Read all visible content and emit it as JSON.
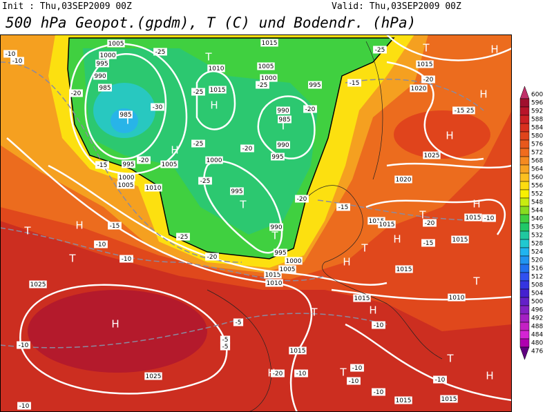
{
  "header": {
    "init": "Init : Thu,03SEP2009 00Z",
    "valid": "Valid: Thu,03SEP2009 00Z",
    "title": "500 hPa Geopot.(gpdm), T (C) und Bodendr. (hPa)"
  },
  "colorbar": {
    "values": [
      600,
      596,
      592,
      588,
      584,
      580,
      576,
      572,
      568,
      564,
      560,
      556,
      552,
      548,
      544,
      540,
      536,
      532,
      528,
      524,
      520,
      516,
      512,
      508,
      504,
      500,
      496,
      492,
      488,
      484,
      480,
      476
    ],
    "colors": [
      "#c0306a",
      "#a0102e",
      "#b8142a",
      "#cc2024",
      "#d8301e",
      "#e0441c",
      "#e8581c",
      "#f06c1e",
      "#f58a20",
      "#f8a422",
      "#fcc020",
      "#fedc10",
      "#f8f000",
      "#c8ec10",
      "#88dc20",
      "#40d040",
      "#20c868",
      "#20c8a0",
      "#20c8d0",
      "#20b4f0",
      "#2094f0",
      "#2070f0",
      "#3050f0",
      "#3434e0",
      "#4420d0",
      "#6420c8",
      "#8420c4",
      "#a420c4",
      "#c420c4",
      "#d424d4",
      "#b000b0",
      "#600080"
    ]
  },
  "labels": [
    "H",
    "H",
    "T",
    "T",
    "T",
    "T",
    "T",
    "H",
    "T",
    "H",
    "T",
    "H",
    "H",
    "H",
    "H",
    "H",
    "T",
    "T",
    "H",
    "T",
    "H",
    "T",
    "T",
    "H",
    "H",
    "T",
    "T",
    "1025",
    "1025",
    "1015",
    "1015",
    "1010",
    "1005",
    "1000",
    "995",
    "990",
    "995",
    "1000",
    "1005",
    "1010",
    "1005",
    "1000",
    "995",
    "985",
    "985",
    "990",
    "995",
    "1000",
    "1005",
    "1015",
    "1010",
    "1015",
    "1005",
    "1000",
    "995",
    "990",
    "985",
    "990",
    "995",
    "1020",
    "1015",
    "1025",
    "1025",
    "1020",
    "1015",
    "1015",
    "1015",
    "1015",
    "1015",
    "1010",
    "1015",
    "1015",
    "1015",
    "-10",
    "-10",
    "-20",
    "-25",
    "-25",
    "-30",
    "-20",
    "-15",
    "-25",
    "-20",
    "-25",
    "-20",
    "-25",
    "-15",
    "-25",
    "-20",
    "-15",
    "-20",
    "-15",
    "-20",
    "-15",
    "-10",
    "-15",
    "-10",
    "-10",
    "-25",
    "-20",
    "-10",
    "-10",
    "-5",
    "-5",
    "-5",
    "-20",
    "-10",
    "-10",
    "-10",
    "-10",
    "-10",
    "-10"
  ]
}
